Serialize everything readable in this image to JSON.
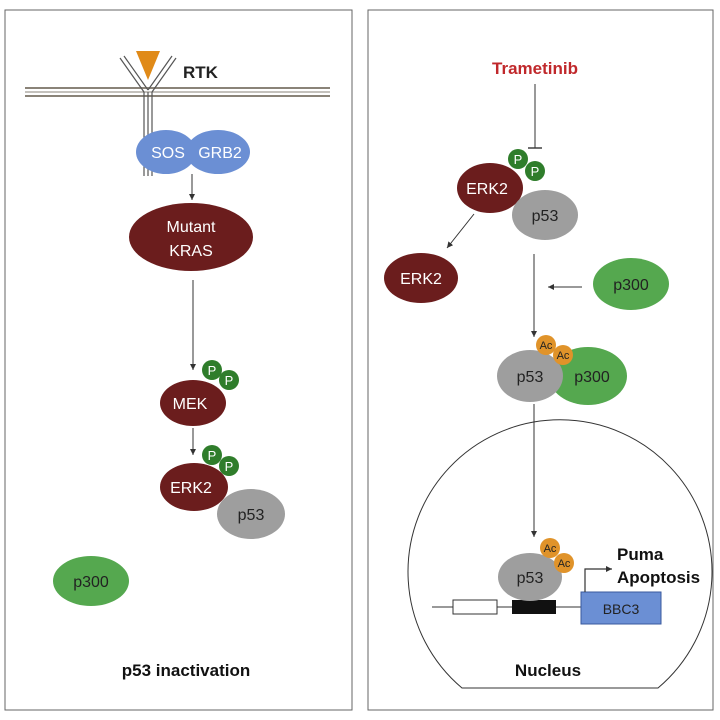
{
  "colors": {
    "dark_red": "#6b1d1d",
    "sos_blue": "#6b8fd4",
    "green": "#55a84f",
    "phospho_green": "#2f7d2b",
    "gray": "#9e9e9e",
    "acetyl_orange": "#e0932a",
    "ligand_orange": "#e08a18",
    "bbc3_blue": "#6b8fd4",
    "drug_red": "#c0282b",
    "line": "#333333"
  },
  "left_panel": {
    "rtk_label": "RTK",
    "sos": "SOS",
    "grb2": "GRB2",
    "kras_line1": "Mutant",
    "kras_line2": "KRAS",
    "mek": "MEK",
    "erk2": "ERK2",
    "p53": "p53",
    "p300": "p300",
    "phospho_mark": "P",
    "caption": "p53 inactivation"
  },
  "right_panel": {
    "drug": "Trametinib",
    "erk2_top": "ERK2",
    "p53_top": "p53",
    "erk2_free": "ERK2",
    "p300_free": "p300",
    "p53_complex": "p53",
    "p300_complex": "p300",
    "acetyl_mark": "Ac",
    "p53_nuclear": "p53",
    "gene": "BBC3",
    "target_line1": "Puma",
    "target_line2": "Apoptosis",
    "caption": "Nucleus",
    "phospho_mark": "P"
  }
}
